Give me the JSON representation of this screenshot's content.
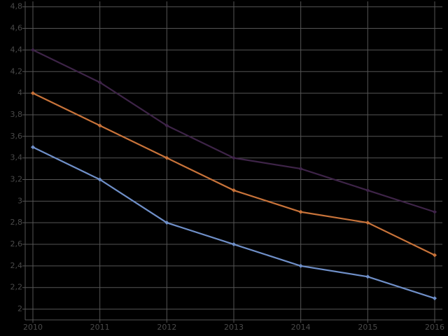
{
  "chart_data": {
    "type": "line",
    "x": [
      2010,
      2011,
      2012,
      2013,
      2014,
      2015,
      2016
    ],
    "xlim": [
      2009.885,
      2016.115
    ],
    "xticks": [
      2010,
      2011,
      2012,
      2013,
      2014,
      2015,
      2016
    ],
    "ylim": [
      1.9,
      4.85
    ],
    "yticks": [
      2,
      {
        "value": 2.2,
        "label": "2,2"
      },
      {
        "value": 2.4,
        "label": "2,4"
      },
      {
        "value": 2.6,
        "label": "2,6"
      },
      {
        "value": 2.8,
        "label": "2,8"
      },
      3,
      {
        "value": 3.2,
        "label": "3,2"
      },
      {
        "value": 3.4,
        "label": "3,4"
      },
      {
        "value": 3.6,
        "label": "3,6"
      },
      {
        "value": 3.8,
        "label": "3,8"
      },
      4,
      {
        "value": 4.2,
        "label": "4,2"
      },
      {
        "value": 4.4,
        "label": "4,4"
      },
      {
        "value": 4.6,
        "label": "4,6"
      },
      {
        "value": 4.8,
        "label": "4,8"
      }
    ],
    "grid": true,
    "series": [
      {
        "color": "#3e2448",
        "values": [
          4.4,
          4.1,
          3.7,
          3.4,
          3.3,
          3.1,
          2.9
        ]
      },
      {
        "color": "#c8733a",
        "values": [
          4.0,
          3.7,
          3.4,
          3.1,
          2.9,
          2.8,
          2.5
        ]
      },
      {
        "color": "#6f8fc8",
        "values": [
          3.5,
          3.2,
          2.8,
          2.6,
          2.4,
          2.3,
          2.1
        ]
      }
    ]
  }
}
